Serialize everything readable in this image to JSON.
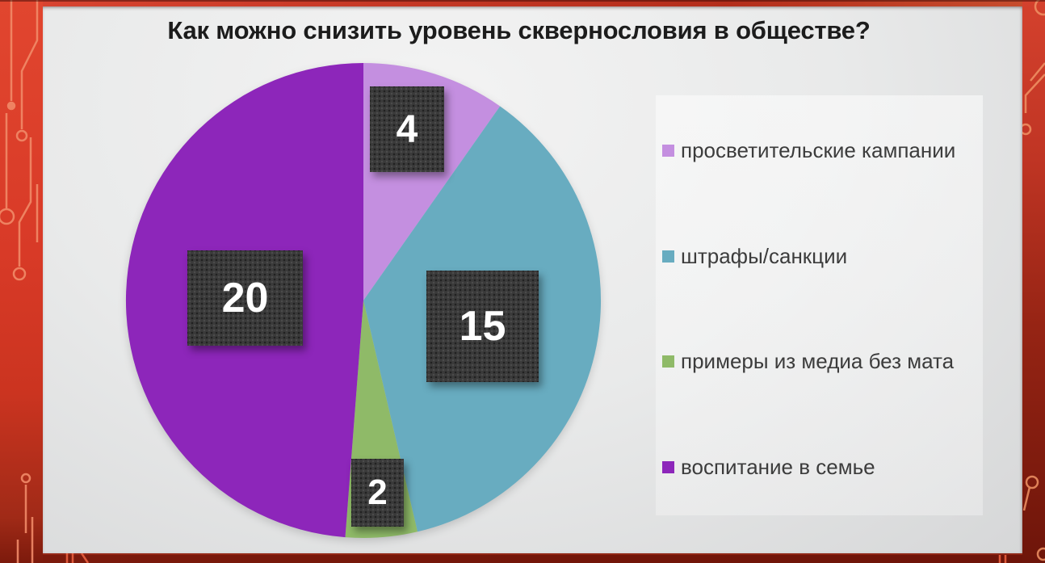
{
  "slide": {
    "title": "Как можно снизить уровень сквернословия в обществе?"
  },
  "chart_data": {
    "type": "pie",
    "title": "Как можно снизить уровень сквернословия в обществе?",
    "start_angle_deg": 0,
    "direction": "clockwise",
    "legend_position": "right",
    "slices": [
      {
        "label": "просветительские кампании",
        "value": 4,
        "color": "#c48fe0"
      },
      {
        "label": "штрафы/санкции",
        "value": 15,
        "color": "#68acc0"
      },
      {
        "label": "примеры из медиа без мата",
        "value": 2,
        "color": "#8fba68"
      },
      {
        "label": "воспитание в семье",
        "value": 20,
        "color": "#8d26ba"
      }
    ]
  },
  "theme": {
    "border_red": "#d83a27",
    "border_dark_red": "#6e1409",
    "circuit_trace": "#f18a68",
    "slide_bg": "#e9eaea",
    "label_box_bg": "#3a3a3a",
    "label_text_color": "#ffffff",
    "title_color": "#1c1c1c",
    "legend_text_color": "#3c3c3c"
  }
}
